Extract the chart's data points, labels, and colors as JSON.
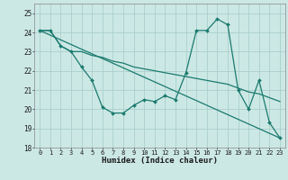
{
  "xlabel": "Humidex (Indice chaleur)",
  "background_color": "#cce8e5",
  "grid_color": "#aacfcc",
  "line_color": "#1a7a6e",
  "xlim": [
    -0.5,
    23.5
  ],
  "ylim": [
    18,
    25.5
  ],
  "yticks": [
    18,
    19,
    20,
    21,
    22,
    23,
    24,
    25
  ],
  "xticks": [
    0,
    1,
    2,
    3,
    4,
    5,
    6,
    7,
    8,
    9,
    10,
    11,
    12,
    13,
    14,
    15,
    16,
    17,
    18,
    19,
    20,
    21,
    22,
    23
  ],
  "line1_x": [
    0,
    1,
    2,
    3,
    4,
    5,
    6,
    7,
    8,
    9,
    10,
    11,
    12,
    13,
    14,
    15,
    16,
    17,
    18,
    19,
    20,
    21,
    22,
    23
  ],
  "line1_y": [
    24.1,
    24.1,
    23.3,
    23.0,
    22.2,
    21.5,
    20.1,
    19.8,
    19.8,
    20.2,
    20.5,
    20.4,
    20.7,
    20.5,
    21.9,
    24.1,
    24.1,
    24.7,
    24.4,
    21.0,
    20.0,
    21.5,
    19.3,
    18.5
  ],
  "line2_x": [
    0,
    1,
    2,
    3,
    4,
    5,
    6,
    7,
    8,
    9,
    10,
    11,
    12,
    13,
    14,
    15,
    16,
    17,
    18,
    19,
    20,
    21,
    22,
    23
  ],
  "line2_y": [
    24.1,
    24.1,
    23.3,
    23.0,
    23.0,
    22.8,
    22.7,
    22.5,
    22.4,
    22.2,
    22.1,
    22.0,
    21.9,
    21.8,
    21.7,
    21.6,
    21.5,
    21.4,
    21.3,
    21.1,
    20.9,
    20.8,
    20.6,
    20.4
  ],
  "line3_x": [
    0,
    23
  ],
  "line3_y": [
    24.1,
    18.5
  ]
}
